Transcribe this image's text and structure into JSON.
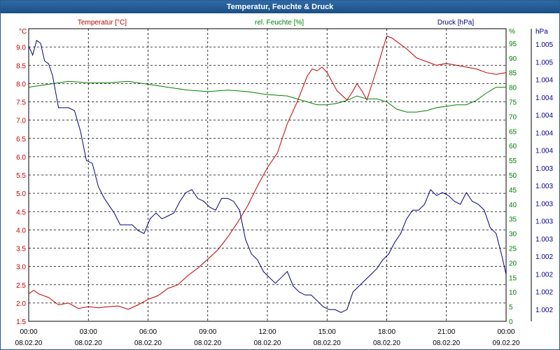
{
  "window": {
    "title": "Temperatur, Feuchte & Druck"
  },
  "chart_data": {
    "type": "line",
    "title": "Temperatur, Feuchte & Druck",
    "grid": true,
    "x_ticks": [
      {
        "time": "00:00",
        "date": "08.02.20"
      },
      {
        "time": "03:00",
        "date": "08.02.20"
      },
      {
        "time": "06:00",
        "date": "08.02.20"
      },
      {
        "time": "09:00",
        "date": "08.02.20"
      },
      {
        "time": "12:00",
        "date": "08.02.20"
      },
      {
        "time": "15:00",
        "date": "08.02.20"
      },
      {
        "time": "18:00",
        "date": "08.02.20"
      },
      {
        "time": "21:00",
        "date": "08.02.20"
      },
      {
        "time": "00:00",
        "date": "09.02.20"
      }
    ],
    "xlim_hours": [
      0,
      24
    ],
    "axes": {
      "temperature": {
        "label": "Temperatur [°C]",
        "unit": "°C",
        "color": "#c00000",
        "ylim": [
          1.5,
          9.5
        ],
        "ticks": [
          "1.5",
          "2.0",
          "2.5",
          "3.0",
          "3.5",
          "4.0",
          "4.5",
          "5.0",
          "5.5",
          "6.0",
          "6.5",
          "7.0",
          "7.5",
          "8.0",
          "8.5",
          "9.0"
        ]
      },
      "humidity": {
        "label": "rel. Feuchte [%]",
        "unit": "%",
        "color": "#008000",
        "ylim": [
          0,
          100
        ],
        "ticks": [
          "0",
          "5",
          "10",
          "15",
          "20",
          "25",
          "30",
          "35",
          "40",
          "45",
          "50",
          "55",
          "60",
          "65",
          "70",
          "75",
          "80",
          "85",
          "90",
          "95"
        ]
      },
      "pressure": {
        "label": "Druck [hPa]",
        "unit": "hPa",
        "color": "#000080",
        "ticks": [
          "1.002",
          "1.002",
          "1.002",
          "1.002",
          "1.003",
          "1.003",
          "1.003",
          "1.003",
          "1.003",
          "1.004",
          "1.004",
          "1.004",
          "1.004",
          "1.004",
          "1.005",
          "1.005"
        ]
      }
    },
    "series": [
      {
        "name": "Temperatur [°C]",
        "axis": "temperature",
        "color": "#c00000",
        "x": [
          0,
          0.25,
          0.5,
          1,
          1.5,
          2,
          2.5,
          3,
          3.5,
          4,
          4.5,
          5,
          5.5,
          6,
          6.5,
          7,
          7.5,
          8,
          8.5,
          9,
          9.5,
          10,
          10.5,
          11,
          11.5,
          12,
          12.5,
          13,
          13.5,
          14,
          14.25,
          14.5,
          14.75,
          15,
          15.5,
          16,
          16.25,
          16.5,
          16.75,
          17,
          17.5,
          18,
          18.25,
          18.5,
          19,
          19.5,
          20,
          20.5,
          21,
          21.5,
          22,
          22.5,
          23,
          23.5,
          24
        ],
        "y": [
          2.25,
          2.35,
          2.25,
          2.15,
          1.95,
          2.0,
          1.85,
          1.9,
          1.87,
          1.9,
          1.92,
          1.83,
          1.95,
          2.1,
          2.2,
          2.4,
          2.5,
          2.75,
          2.95,
          3.2,
          3.45,
          3.8,
          4.2,
          4.65,
          5.2,
          5.7,
          6.1,
          6.9,
          7.5,
          8.2,
          8.4,
          8.35,
          8.45,
          8.3,
          7.8,
          7.55,
          7.75,
          8.0,
          7.8,
          7.55,
          8.4,
          9.3,
          9.25,
          9.15,
          8.95,
          8.7,
          8.6,
          8.5,
          8.55,
          8.5,
          8.45,
          8.4,
          8.3,
          8.25,
          8.3
        ]
      },
      {
        "name": "rel. Feuchte [%]",
        "axis": "humidity",
        "color": "#008000",
        "x": [
          0,
          0.5,
          1,
          2,
          3,
          4,
          5,
          6,
          7,
          8,
          9,
          10,
          11,
          12,
          13,
          14,
          14.5,
          15,
          15.5,
          16,
          16.5,
          17,
          17.5,
          18,
          18.5,
          19,
          19.5,
          20,
          20.5,
          21,
          21.5,
          22,
          22.5,
          23,
          23.5,
          24
        ],
        "y": [
          80,
          80.5,
          81,
          82,
          81.5,
          81.5,
          82,
          81,
          80,
          79,
          78.5,
          79,
          78.5,
          77.5,
          77,
          75,
          74,
          74,
          74.5,
          75.5,
          77,
          76,
          76,
          75,
          72.5,
          71.5,
          71.5,
          72,
          73,
          73.5,
          74,
          74,
          75.5,
          78,
          80,
          80
        ]
      },
      {
        "name": "Druck [hPa]",
        "axis": "pressure",
        "color": "#000080",
        "note": "relative level 0-100 of plot height (tick labels repeat at 3-decimal resolution)",
        "x": [
          0,
          0.2,
          0.4,
          0.6,
          0.8,
          1.0,
          1.2,
          1.5,
          1.8,
          2.0,
          2.3,
          2.6,
          2.9,
          3.2,
          3.5,
          3.8,
          4.0,
          4.3,
          4.6,
          4.9,
          5.2,
          5.5,
          5.8,
          6.1,
          6.4,
          6.7,
          7.0,
          7.3,
          7.6,
          7.9,
          8.2,
          8.5,
          8.8,
          9.1,
          9.4,
          9.7,
          10.0,
          10.3,
          10.6,
          10.9,
          11.2,
          11.5,
          11.8,
          12.1,
          12.4,
          12.7,
          13.0,
          13.3,
          13.6,
          13.9,
          14.2,
          14.5,
          14.8,
          15.1,
          15.4,
          15.7,
          16.0,
          16.3,
          16.6,
          16.9,
          17.2,
          17.5,
          17.8,
          18.1,
          18.4,
          18.7,
          19.0,
          19.3,
          19.6,
          19.9,
          20.2,
          20.5,
          20.8,
          21.1,
          21.4,
          21.7,
          22.0,
          22.3,
          22.6,
          22.9,
          23.2,
          23.5,
          23.8,
          24
        ],
        "y": [
          94,
          91,
          96,
          95,
          89,
          88,
          84,
          73,
          73,
          73,
          72,
          65,
          55,
          54,
          46,
          42,
          40,
          37,
          33,
          33,
          33,
          31,
          30,
          35,
          37,
          35,
          36,
          37,
          41,
          44,
          45,
          42,
          41,
          39,
          38,
          42,
          42,
          41,
          38,
          28,
          23,
          21,
          17,
          15,
          13,
          15,
          17,
          12,
          10,
          9,
          9,
          7,
          5,
          4,
          4,
          3,
          4,
          10,
          12,
          14,
          16,
          18,
          21,
          23,
          27,
          30,
          35,
          38,
          38,
          40,
          45,
          43,
          44,
          43,
          41,
          40,
          44,
          41,
          40,
          38,
          32,
          30,
          22,
          16
        ]
      }
    ]
  }
}
